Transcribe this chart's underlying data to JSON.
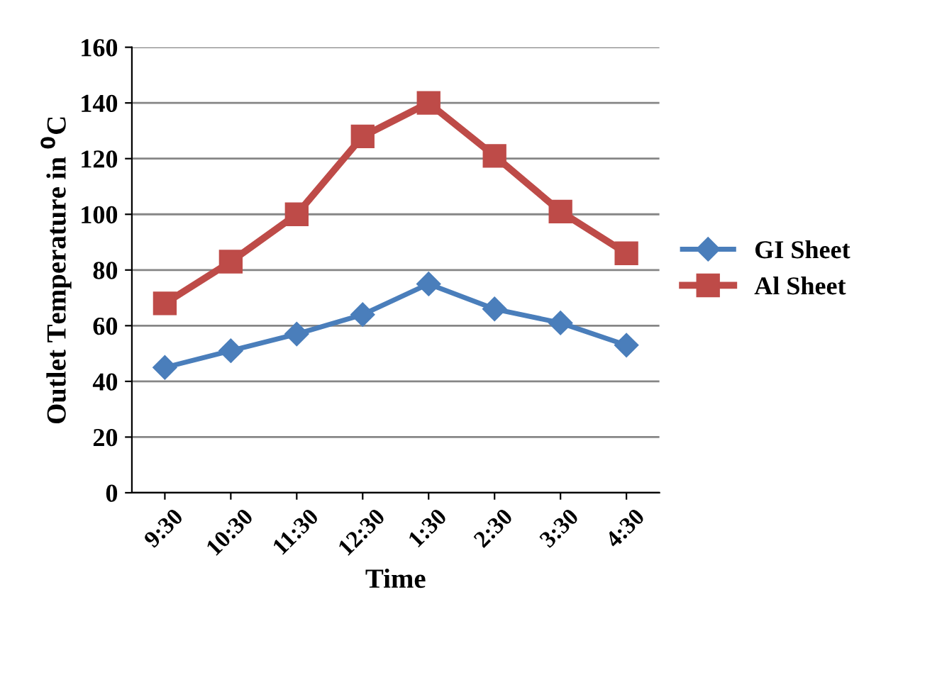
{
  "chart_data": {
    "type": "line",
    "xlabel": "Time",
    "ylabel": "Outlet Temperature in $^{0}$C",
    "categories": [
      "9:30",
      "10:30",
      "11:30",
      "12:30",
      "1:30",
      "2:30",
      "3:30",
      "4:30"
    ],
    "series": [
      {
        "name": "GI Sheet",
        "color": "#4a7ebb",
        "values": [
          45,
          51,
          57,
          64,
          75,
          66,
          61,
          53
        ],
        "marker": "diamond"
      },
      {
        "name": "Al Sheet",
        "color": "#be4b48",
        "values": [
          68,
          83,
          100,
          128,
          140,
          121,
          101,
          86
        ],
        "marker": "square"
      }
    ],
    "ylim": [
      0,
      160
    ],
    "yticks": [
      0,
      20,
      40,
      60,
      80,
      100,
      120,
      140,
      160
    ],
    "grid": "y",
    "legend": "right"
  }
}
